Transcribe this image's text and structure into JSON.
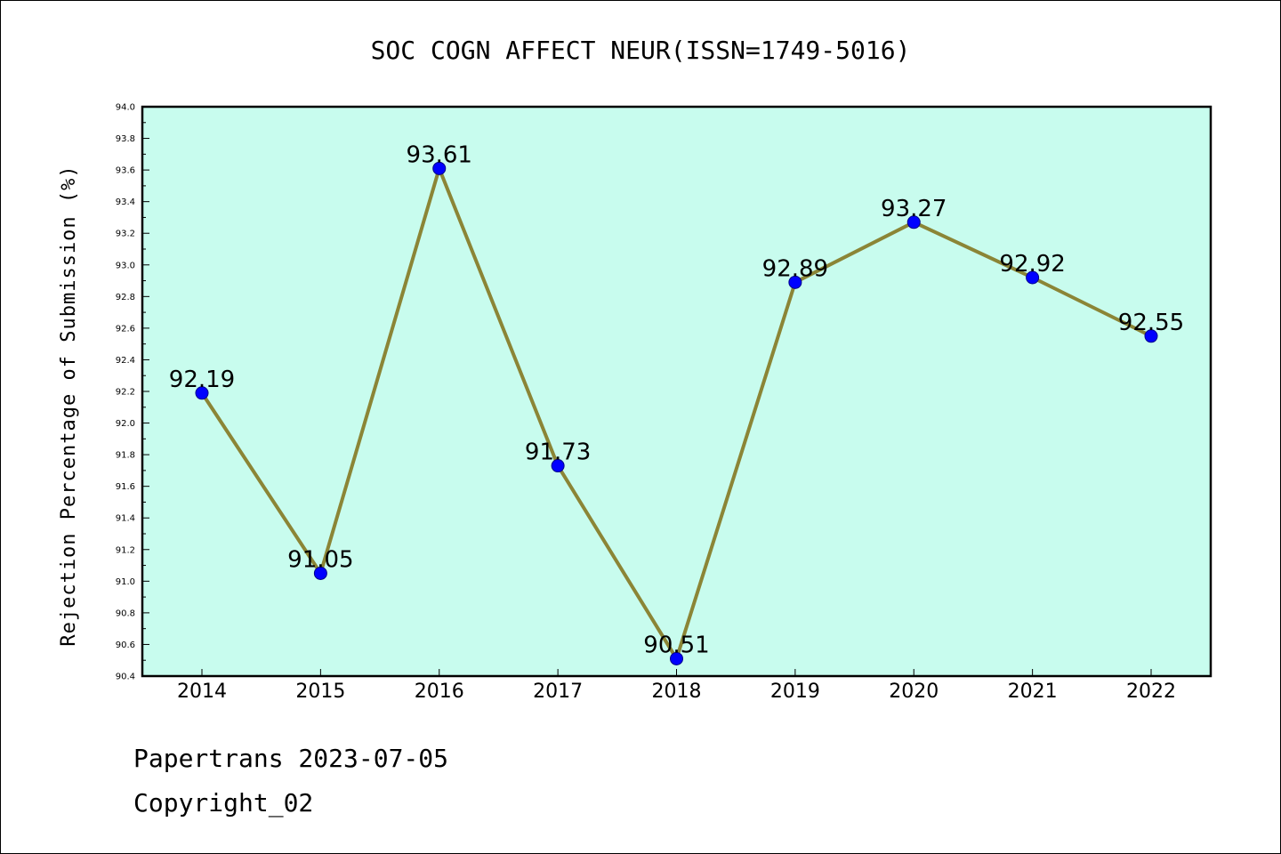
{
  "chart_data": {
    "type": "line",
    "title": "SOC COGN AFFECT NEUR(ISSN=1749-5016)",
    "xlabel": "",
    "ylabel": "Rejection Percentage of Submission (%)",
    "categories": [
      "2014",
      "2015",
      "2016",
      "2017",
      "2018",
      "2019",
      "2020",
      "2021",
      "2022"
    ],
    "values": [
      92.19,
      91.05,
      93.61,
      91.73,
      90.51,
      92.89,
      93.27,
      92.92,
      92.55
    ],
    "data_labels": [
      "92.19",
      "91.05",
      "93.61",
      "91.73",
      "90.51",
      "92.89",
      "93.27",
      "92.92",
      "92.55"
    ],
    "ylim": [
      90.4,
      94.0
    ],
    "yticks": [
      "90.4",
      "90.6",
      "90.8",
      "91.0",
      "91.2",
      "91.4",
      "91.6",
      "91.8",
      "92.0",
      "92.2",
      "92.4",
      "92.6",
      "92.8",
      "93.0",
      "93.2",
      "93.4",
      "93.6",
      "93.8",
      "94.0"
    ],
    "grid": false,
    "colors": {
      "plot_background": "#c8fcee",
      "line": "#8b8536",
      "marker_fill": "#0000ff",
      "marker_edge": "#00008b"
    }
  },
  "footer": {
    "line1": "Papertrans 2023-07-05",
    "line2": "Copyright_02"
  }
}
